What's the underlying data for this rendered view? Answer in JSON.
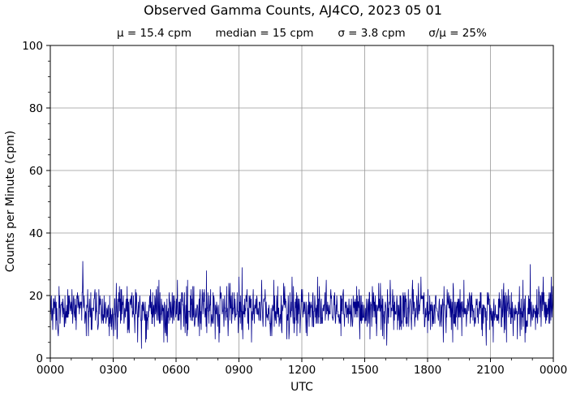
{
  "chart_data": {
    "type": "line",
    "title": "Observed Gamma Counts, AJ4CO, 2023 05 01",
    "subtitle": [
      "μ = 15.4 cpm",
      "median = 15 cpm",
      "σ = 3.8 cpm",
      "σ/μ = 25%"
    ],
    "xlabel": "UTC",
    "ylabel": "Counts per Minute (cpm)",
    "xlim": [
      0,
      24
    ],
    "ylim": [
      0,
      100
    ],
    "x_ticks": [
      {
        "value": 0,
        "label": "0000"
      },
      {
        "value": 3,
        "label": "0300"
      },
      {
        "value": 6,
        "label": "0600"
      },
      {
        "value": 9,
        "label": "0900"
      },
      {
        "value": 12,
        "label": "1200"
      },
      {
        "value": 15,
        "label": "1500"
      },
      {
        "value": 18,
        "label": "1800"
      },
      {
        "value": 21,
        "label": "2100"
      },
      {
        "value": 24,
        "label": "0000"
      }
    ],
    "y_ticks": [
      0,
      20,
      40,
      60,
      80,
      100
    ],
    "grid": true,
    "series": [
      {
        "color": "#00008b",
        "sampling_minutes": 1,
        "mean": 15.4,
        "median": 15,
        "std": 3.8,
        "notable_points": [
          {
            "x": 1.55,
            "y": 31
          },
          {
            "x": 4.35,
            "y": 3
          },
          {
            "x": 7.45,
            "y": 28
          },
          {
            "x": 9.15,
            "y": 29
          },
          {
            "x": 16.05,
            "y": 4
          },
          {
            "x": 20.8,
            "y": 4
          },
          {
            "x": 22.9,
            "y": 30
          }
        ]
      }
    ]
  }
}
